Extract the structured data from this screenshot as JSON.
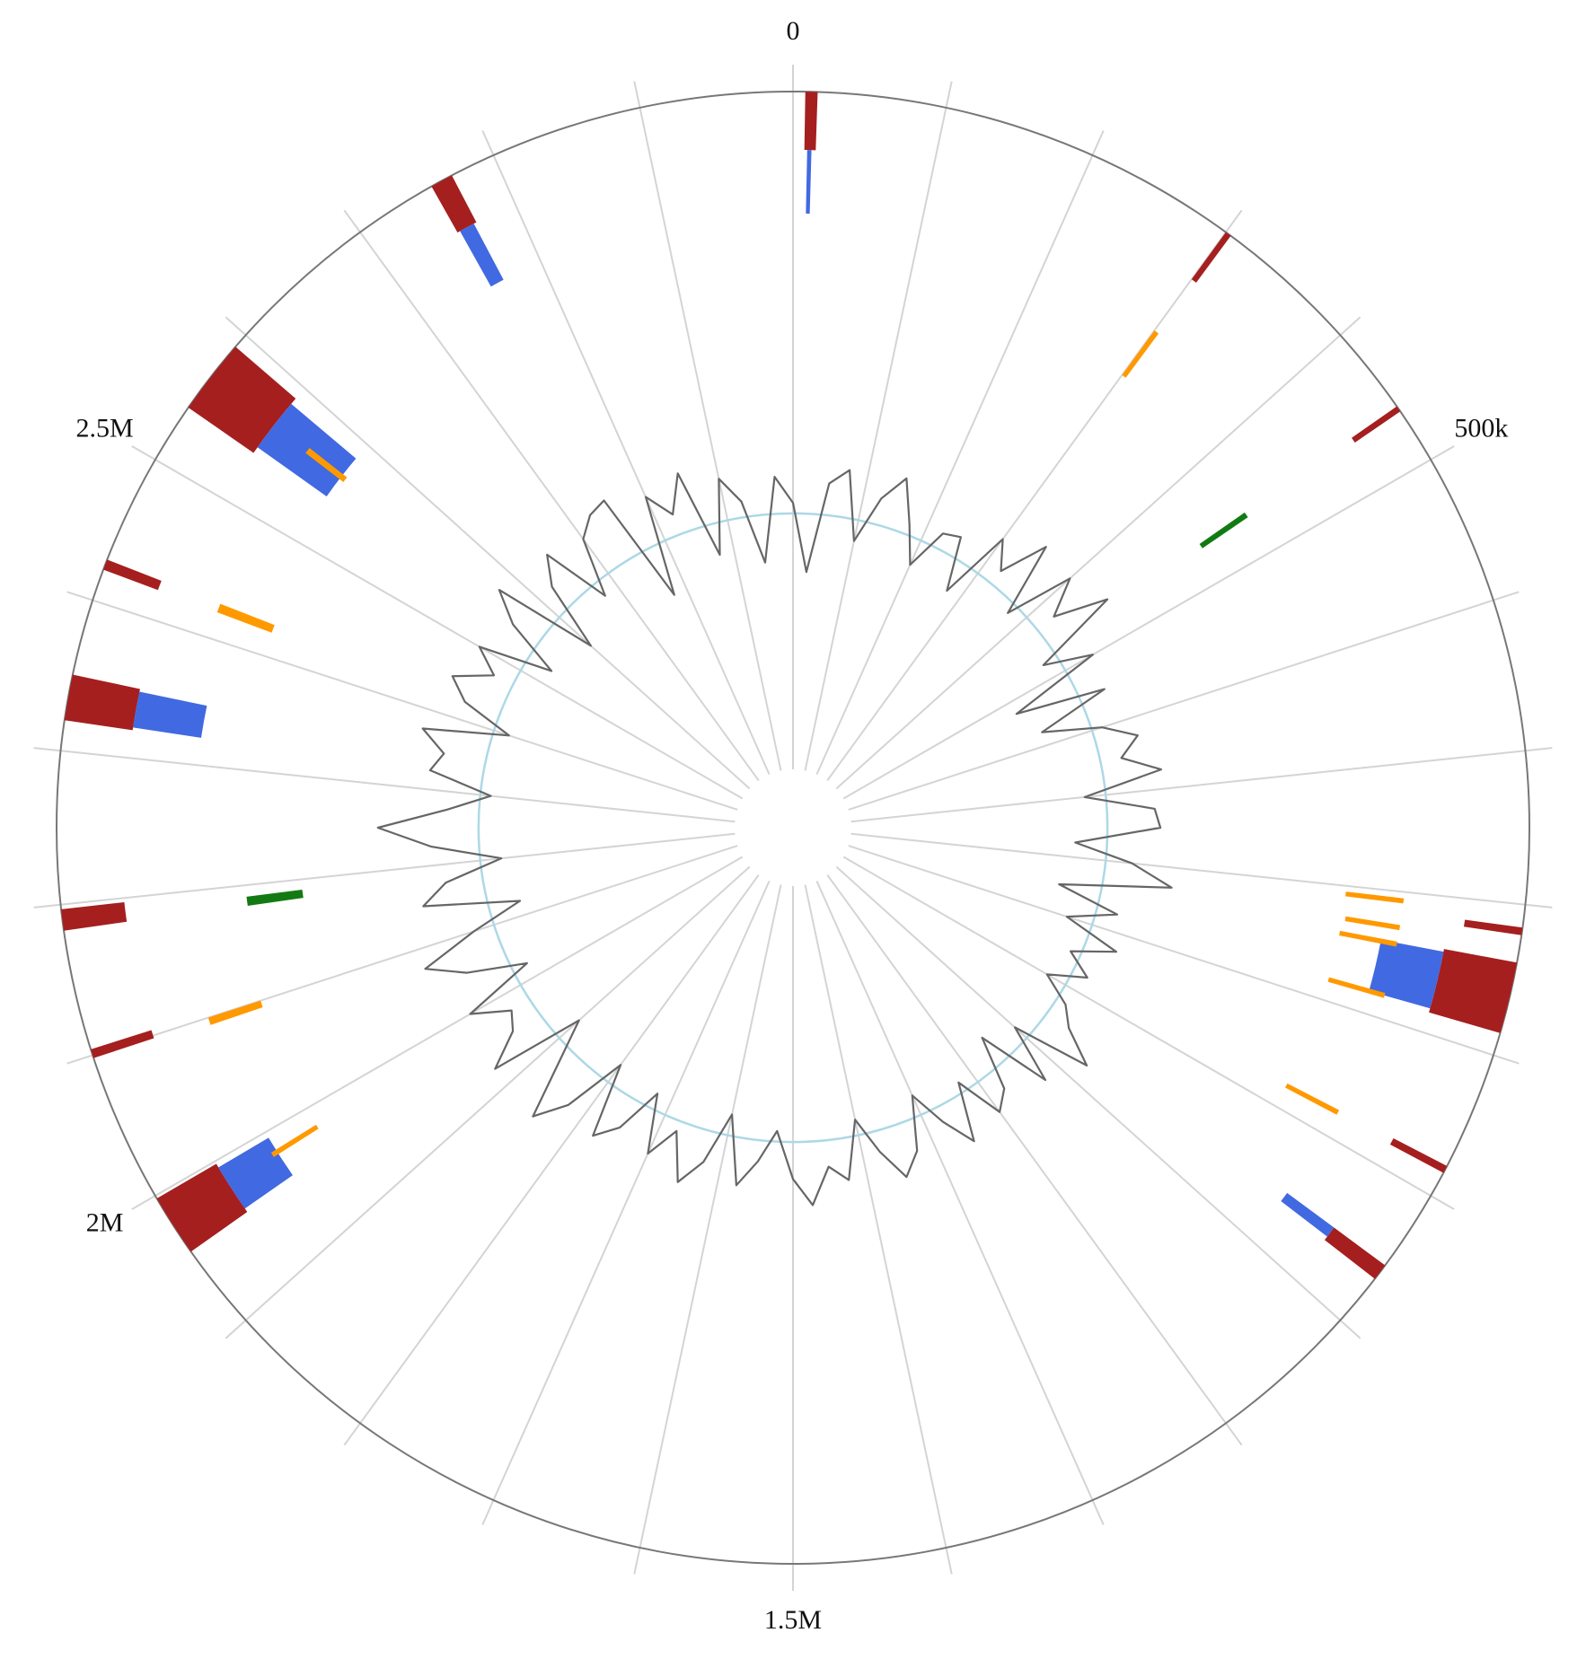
{
  "chart_data": {
    "type": "circular",
    "xlim": [
      0,
      3000000
    ],
    "xticks": [
      {
        "value": 0,
        "label": "0"
      },
      {
        "value": 500000,
        "label": "500k"
      },
      {
        "value": 1500000,
        "label": "1.5M"
      },
      {
        "value": 2000000,
        "label": "2M"
      },
      {
        "value": 2500000,
        "label": "2.5M"
      }
    ],
    "minor_xticks": [
      0,
      100000,
      200000,
      300000,
      400000,
      500000,
      600000,
      700000,
      800000,
      900000,
      1000000,
      1100000,
      1200000,
      1300000,
      1400000,
      1500000,
      1600000,
      1700000,
      1800000,
      1900000,
      2000000,
      2100000,
      2200000,
      2300000,
      2400000,
      2500000,
      2600000,
      2700000,
      2800000,
      2900000
    ],
    "series": [
      {
        "color": "#a51f1f",
        "starts": [
          8000,
          300000,
          459000,
          815000,
          838000,
          978000,
          1054000,
          1957000,
          2098000,
          2183000,
          2320000,
          2421000,
          2540000,
          2755000
        ],
        "ends": [
          16000,
          304000,
          463000,
          820000,
          885000,
          983000,
          1065000,
          1998000,
          2104000,
          2197000,
          2350000,
          2428000,
          2590000,
          2770000
        ],
        "values": [
          55,
          55,
          52,
          55,
          70,
          57,
          60,
          65,
          60,
          60,
          65,
          55,
          75,
          50
        ]
      },
      {
        "color": "#4169e1",
        "starts": [
          10000,
          840000,
          1054000,
          1960000,
          2322000,
          2545000,
          2757000
        ],
        "ends": [
          13000,
          882000,
          1062000,
          1995000,
          2348000,
          2585000,
          2768000
        ],
        "values": [
          60,
          60,
          55,
          55,
          65,
          80,
          60
        ]
      },
      {
        "color": "#ff9900",
        "starts": [
          300000,
          805000,
          826000,
          839000,
          880000,
          978000,
          1980000,
          2094000,
          2421000,
          2563000
        ],
        "ends": [
          304000,
          809000,
          830000,
          843000,
          884000,
          982000,
          1984000,
          2100000,
          2428000,
          2568000
        ],
        "values": [
          52,
          55,
          52,
          55,
          55,
          55,
          50,
          52,
          55,
          45
        ]
      },
      {
        "color": "#127a12",
        "starts": [
          459000,
          2182000
        ],
        "ends": [
          464000,
          2190000
        ],
        "values": [
          52,
          53
        ]
      }
    ],
    "line": {
      "color": "#666666",
      "baseline_color": "#add8e6",
      "x": [
        0,
        25000,
        50000,
        75000,
        100000,
        125000,
        150000,
        175000,
        200000,
        225000,
        250000,
        275000,
        300000,
        325000,
        350000,
        375000,
        400000,
        425000,
        450000,
        475000,
        500000,
        525000,
        550000,
        575000,
        600000,
        625000,
        650000,
        675000,
        700000,
        725000,
        750000,
        775000,
        800000,
        825000,
        850000,
        875000,
        900000,
        925000,
        950000,
        975000,
        1000000,
        1025000,
        1050000,
        1075000,
        1100000,
        1125000,
        1150000,
        1175000,
        1200000,
        1225000,
        1250000,
        1275000,
        1300000,
        1325000,
        1350000,
        1375000,
        1400000,
        1425000,
        1450000,
        1475000,
        1500000,
        1525000,
        1550000,
        1575000,
        1600000,
        1625000,
        1650000,
        1675000,
        1700000,
        1725000,
        1750000,
        1775000,
        1800000,
        1825000,
        1850000,
        1875000,
        1900000,
        1925000,
        1950000,
        1975000,
        2000000,
        2025000,
        2050000,
        2075000,
        2100000,
        2125000,
        2150000,
        2175000,
        2200000,
        2225000,
        2250000,
        2275000,
        2300000,
        2325000,
        2350000,
        2375000,
        2400000,
        2425000,
        2450000,
        2475000,
        2500000,
        2525000,
        2550000,
        2575000,
        2600000,
        2625000,
        2650000,
        2675000,
        2700000,
        2725000,
        2750000,
        2775000,
        2800000,
        2825000,
        2850000,
        2875000,
        2900000,
        2925000,
        2950000,
        2975000
      ],
      "values": [
        10,
        -55,
        30,
        45,
        -20,
        25,
        50,
        10,
        -25,
        15,
        20,
        -30,
        40,
        15,
        60,
        -10,
        55,
        20,
        70,
        -15,
        30,
        -60,
        25,
        -45,
        10,
        40,
        20,
        55,
        -20,
        45,
        50,
        -30,
        25,
        65,
        -40,
        20,
        -25,
        30,
        -10,
        15,
        -20,
        10,
        25,
        60,
        -15,
        40,
        -30,
        20,
        35,
        -10,
        45,
        15,
        -20,
        30,
        50,
        20,
        -15,
        40,
        25,
        60,
        35,
        -10,
        20,
        45,
        -20,
        30,
        55,
        10,
        40,
        -15,
        30,
        50,
        -20,
        40,
        70,
        15,
        -25,
        65,
        30,
        20,
        55,
        -15,
        40,
        75,
        20,
        -30,
        60,
        35,
        -20,
        45,
        95,
        30,
        -10,
        50,
        40,
        65,
        -15,
        35,
        55,
        20,
        45,
        -25,
        30,
        60,
        -40,
        25,
        50,
        -15,
        40,
        55,
        60,
        -50,
        45,
        20,
        55,
        -30,
        40,
        15,
        -45,
        35
      ]
    }
  }
}
